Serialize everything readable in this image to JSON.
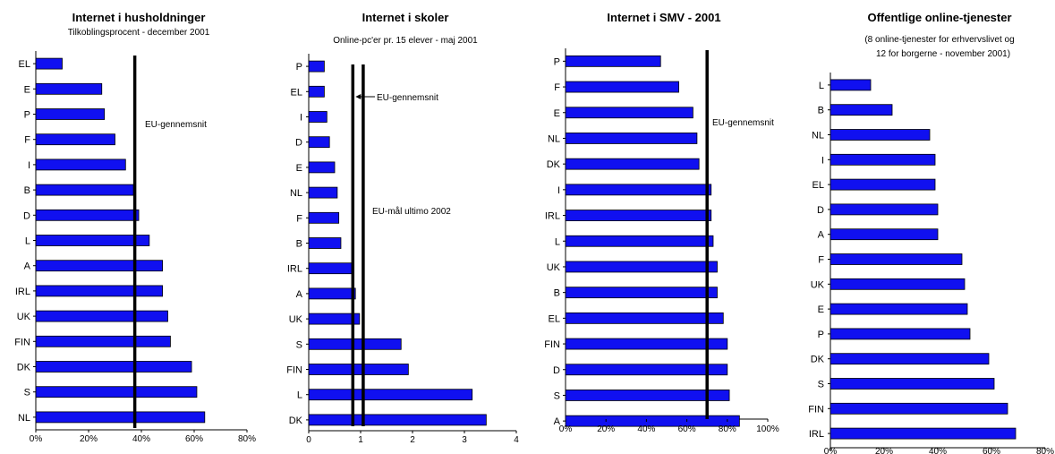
{
  "colors": {
    "bar_fill": "#1010f0",
    "bar_stroke": "#000000",
    "line": "#000000"
  },
  "chart_data": [
    {
      "type": "bar",
      "orientation": "horizontal",
      "title": "Internet i husholdninger",
      "subtitle": "Tilkoblingsprocent - december 2001",
      "categories": [
        "EL",
        "E",
        "P",
        "F",
        "I",
        "B",
        "D",
        "L",
        "A",
        "IRL",
        "UK",
        "FIN",
        "DK",
        "S",
        "NL"
      ],
      "values": [
        10,
        25,
        26,
        30,
        34,
        37,
        39,
        43,
        48,
        48,
        50,
        51,
        59,
        61,
        64
      ],
      "xlim": [
        0,
        80
      ],
      "xticks": [
        "0%",
        "20%",
        "40%",
        "60%",
        "80%"
      ],
      "tick_values": [
        0,
        20,
        40,
        60,
        80
      ],
      "reference_lines": [
        {
          "value": 37.5,
          "label": "EU-gennemsnit"
        }
      ],
      "legend": "none",
      "grid": false
    },
    {
      "type": "bar",
      "orientation": "horizontal",
      "title": "Internet i skoler",
      "subtitle": "Online-pc'er pr. 15 elever - maj 2001",
      "categories": [
        "P",
        "EL",
        "I",
        "D",
        "E",
        "NL",
        "F",
        "B",
        "IRL",
        "A",
        "UK",
        "S",
        "FIN",
        "L",
        "DK"
      ],
      "values": [
        0.3,
        0.3,
        0.35,
        0.4,
        0.5,
        0.55,
        0.58,
        0.62,
        0.85,
        0.9,
        0.98,
        1.78,
        1.92,
        3.15,
        3.42
      ],
      "xlim": [
        0,
        4
      ],
      "xticks": [
        "0",
        "1",
        "2",
        "3",
        "4"
      ],
      "tick_values": [
        0,
        1,
        2,
        3,
        4
      ],
      "reference_lines": [
        {
          "value": 0.85,
          "label": "EU-gennemsnit"
        },
        {
          "value": 1.05,
          "label": "EU-mål ultimo 2002"
        }
      ],
      "legend": "none",
      "grid": false
    },
    {
      "type": "bar",
      "orientation": "horizontal",
      "title": "Internet i SMV - 2001",
      "subtitle": "",
      "categories": [
        "P",
        "F",
        "E",
        "NL",
        "DK",
        "I",
        "IRL",
        "L",
        "UK",
        "B",
        "EL",
        "FIN",
        "D",
        "S",
        "A"
      ],
      "values": [
        47,
        56,
        63,
        65,
        66,
        72,
        72,
        73,
        75,
        75,
        78,
        80,
        80,
        81,
        86
      ],
      "xlim": [
        0,
        100
      ],
      "xticks": [
        "0%",
        "20%",
        "40%",
        "60%",
        "80%",
        "100%"
      ],
      "tick_values": [
        0,
        20,
        40,
        60,
        80,
        100
      ],
      "reference_lines": [
        {
          "value": 70,
          "label": "EU-gennemsnit"
        }
      ],
      "legend": "none",
      "grid": false
    },
    {
      "type": "bar",
      "orientation": "horizontal",
      "title": "Offentlige online-tjenester",
      "subtitle_lines": [
        "(8 online-tjenester for erhvervslivet og",
        "12 for borgerne - november 2001)"
      ],
      "categories": [
        "L",
        "B",
        "NL",
        "I",
        "EL",
        "D",
        "A",
        "F",
        "UK",
        "E",
        "P",
        "DK",
        "S",
        "FIN",
        "IRL"
      ],
      "values": [
        15,
        23,
        37,
        39,
        39,
        40,
        40,
        49,
        50,
        51,
        52,
        59,
        61,
        66,
        69
      ],
      "xlim": [
        0,
        80
      ],
      "xticks": [
        "0%",
        "20%",
        "40%",
        "60%",
        "80%"
      ],
      "tick_values": [
        0,
        20,
        40,
        60,
        80
      ],
      "reference_lines": [],
      "legend": "none",
      "grid": false
    }
  ]
}
